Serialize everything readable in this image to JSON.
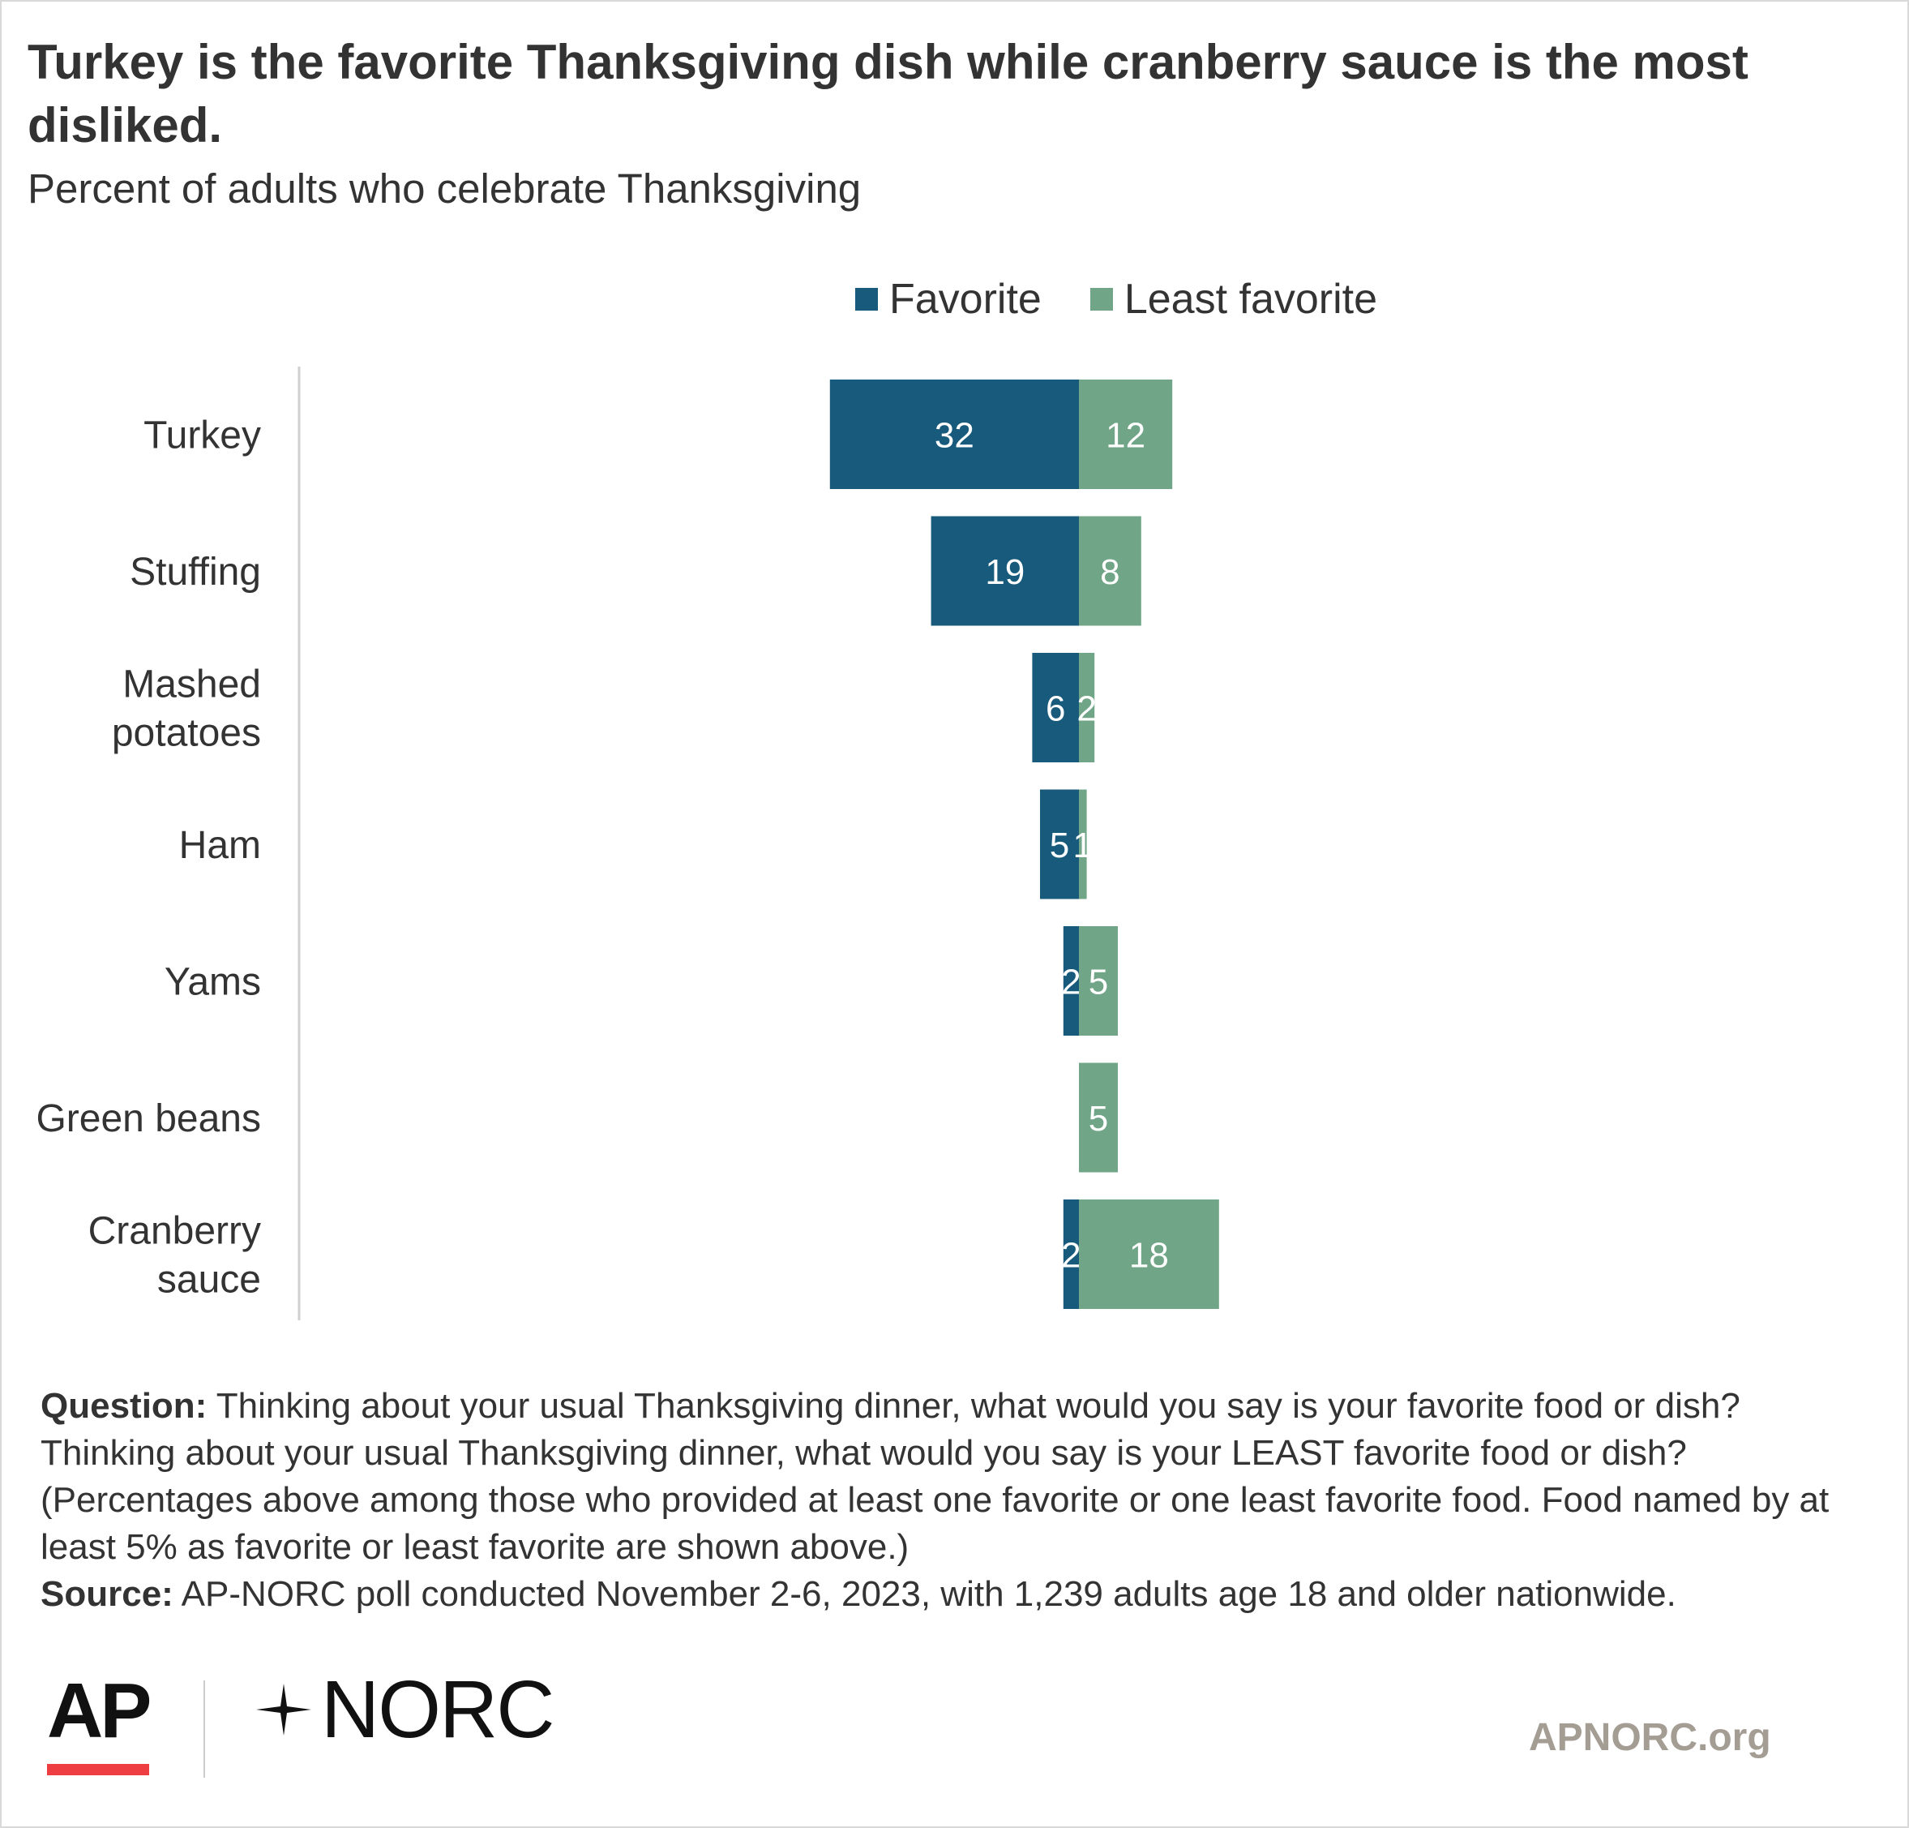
{
  "header": {
    "title": "Turkey is the favorite Thanksgiving dish while cranberry sauce is the most disliked.",
    "subtitle": "Percent of adults who celebrate Thanksgiving"
  },
  "legend": {
    "favorite": "Favorite",
    "least_favorite": "Least favorite"
  },
  "colors": {
    "favorite": "#175a7b",
    "least_favorite": "#71a587",
    "axis_line": "#d0d0d0"
  },
  "chart_data": {
    "type": "bar",
    "orientation": "horizontal",
    "stacked": "diverging",
    "categories": [
      "Turkey",
      "Stuffing",
      "Mashed potatoes",
      "Ham",
      "Yams",
      "Green beans",
      "Cranberry sauce"
    ],
    "category_lines": [
      [
        "Turkey"
      ],
      [
        "Stuffing"
      ],
      [
        "Mashed",
        "potatoes"
      ],
      [
        "Ham"
      ],
      [
        "Yams"
      ],
      [
        "Green beans"
      ],
      [
        "Cranberry",
        "sauce"
      ]
    ],
    "series": [
      {
        "name": "Favorite",
        "values": [
          32,
          19,
          6,
          5,
          2,
          null,
          2
        ],
        "labels": [
          "32",
          "19",
          "6",
          "5",
          "2",
          "",
          "2"
        ]
      },
      {
        "name": "Least favorite",
        "values": [
          12,
          8,
          2,
          1,
          5,
          5,
          18
        ],
        "labels": [
          "12",
          "8",
          "2",
          "1",
          "5",
          "5",
          "18"
        ]
      }
    ],
    "legend_position": "top",
    "grid": false
  },
  "notes": {
    "question_label": "Question:",
    "question_text": " Thinking about your usual Thanksgiving dinner, what would you say is your favorite food or dish? Thinking about your usual Thanksgiving dinner, what would you say is your LEAST favorite food or dish? (Percentages above among those who provided at least one favorite or one least favorite food. Food named by at least 5% as favorite or least favorite are shown above.)",
    "source_label": "Source:",
    "source_text": " AP-NORC poll conducted November 2-6, 2023, with 1,239 adults age 18 and older nationwide."
  },
  "footer": {
    "logo_ap": "AP",
    "logo_norc": "NORC",
    "site": "APNORC.org"
  }
}
